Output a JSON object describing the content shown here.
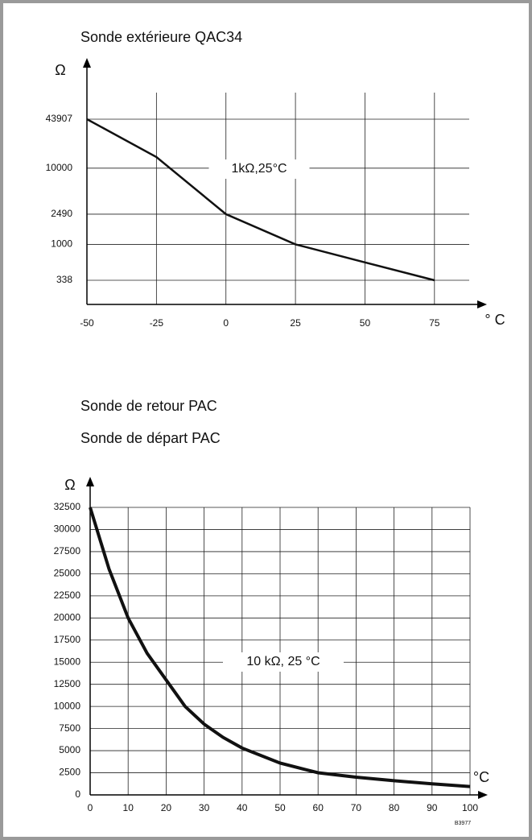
{
  "chart_data": [
    {
      "type": "line",
      "title": "Sonde extérieure QAC34",
      "y_label": "Ω",
      "x_label": "° C",
      "annotation": "1kΩ,25°C",
      "color": "#111111",
      "log_y": true,
      "grid": true,
      "x": [
        -50,
        -25,
        0,
        25,
        50,
        75
      ],
      "values": [
        43907,
        14000,
        2490,
        1000,
        580,
        338
      ],
      "xlim": [
        -50,
        87.5
      ],
      "ylim": [
        163,
        98000
      ],
      "xticks": [
        -50,
        -25,
        0,
        25,
        50,
        75
      ],
      "yticks": [
        338,
        1000,
        2490,
        10000,
        43907
      ]
    },
    {
      "type": "line",
      "title": "Sonde de retour PAC",
      "subtitle": "Sonde de départ PAC",
      "y_label": "Ω",
      "x_label": "°C",
      "annotation": "10 kΩ, 25 °C",
      "note": "B3977",
      "color": "#111111",
      "log_y": false,
      "grid": true,
      "x": [
        0,
        5,
        10,
        15,
        20,
        25,
        30,
        35,
        40,
        50,
        60,
        70,
        80,
        90,
        100
      ],
      "values": [
        32500,
        25500,
        20000,
        16000,
        13000,
        10000,
        8000,
        6500,
        5300,
        3600,
        2500,
        2000,
        1600,
        1250,
        950
      ],
      "xlim": [
        0,
        100
      ],
      "ylim": [
        0,
        32500
      ],
      "xticks": [
        0,
        10,
        20,
        30,
        40,
        50,
        60,
        70,
        80,
        90,
        100
      ],
      "yticks": [
        0,
        2500,
        5000,
        7500,
        10000,
        12500,
        15000,
        17500,
        20000,
        22500,
        25000,
        27500,
        30000,
        32500
      ]
    }
  ]
}
